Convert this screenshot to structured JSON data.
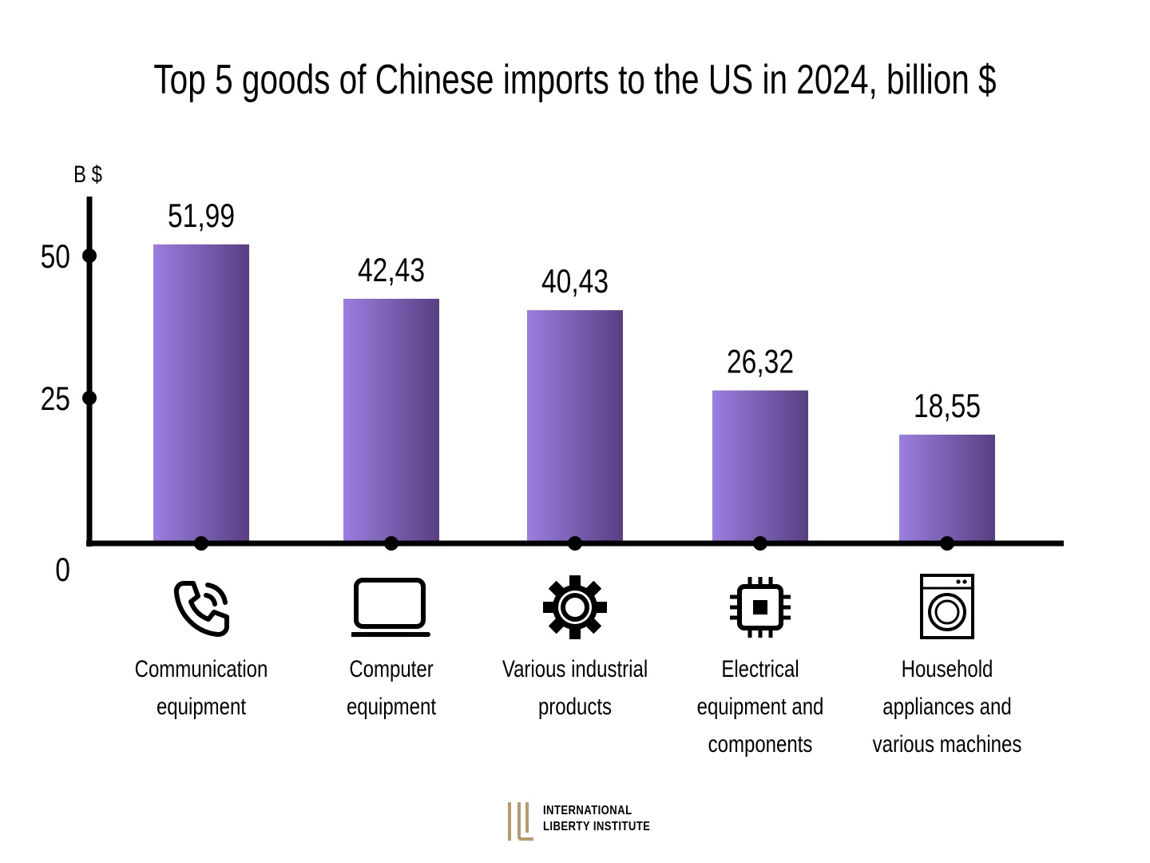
{
  "chart_data": {
    "type": "bar",
    "title": "Top 5 goods of Chinese imports to the US in 2024, billion $",
    "ylabel": "B $",
    "xlabel": "",
    "categories": [
      "Communication\nequipment",
      "Computer\nequipment",
      "Various industrial\nproducts",
      "Electrical\nequipment and\ncomponents",
      "Household\nappliances and\nvarious machines"
    ],
    "values": [
      51.99,
      42.43,
      40.43,
      26.32,
      18.55
    ],
    "value_labels": [
      "51,99",
      "42,43",
      "40,43",
      "26,32",
      "18,55"
    ],
    "y_ticks": [
      0,
      25,
      50
    ],
    "y_tick_labels": [
      "0",
      "25",
      "50"
    ],
    "ylim": [
      0,
      55
    ],
    "grid": false,
    "bar_gradient": [
      "#9b7ee0",
      "#583f82"
    ],
    "icons": [
      "phone-call-icon",
      "laptop-icon",
      "gear-icon",
      "chip-icon",
      "washing-machine-icon"
    ]
  },
  "logo": {
    "line1": "INTERNATIONAL",
    "line2": "LIBERTY INSTITUTE",
    "mark_color": "#b59a6e"
  }
}
